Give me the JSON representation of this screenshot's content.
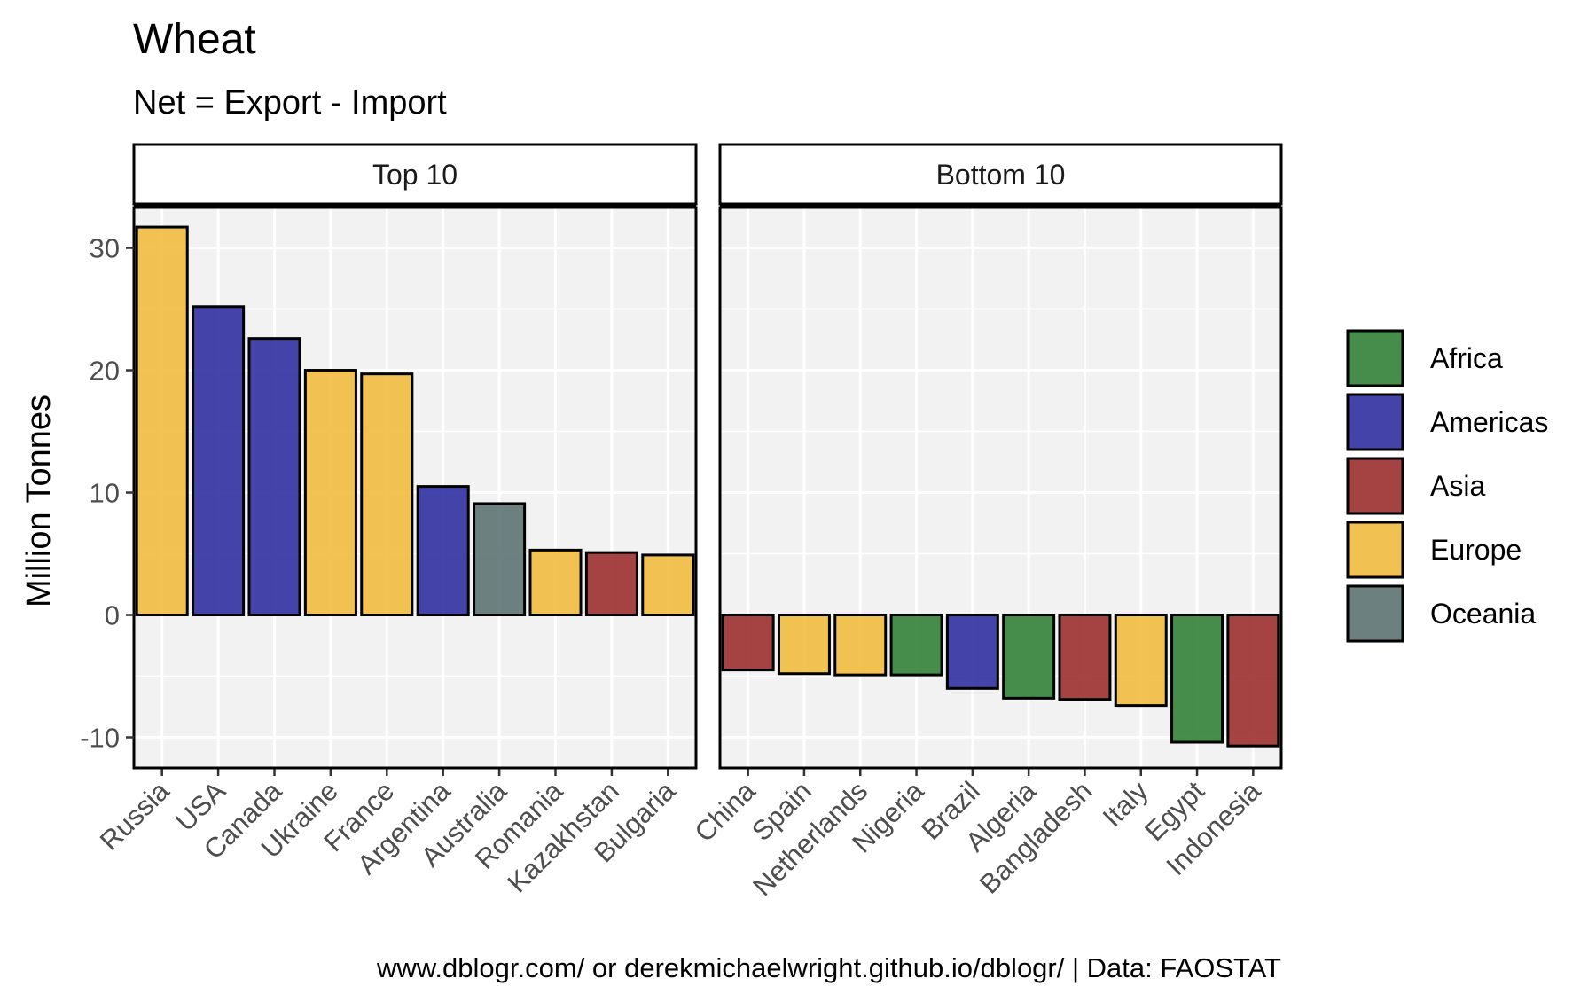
{
  "chart_data": {
    "type": "bar",
    "title": "Wheat",
    "subtitle": "Net = Export - Import",
    "ylabel": "Million Tonnes",
    "xlabel": "",
    "caption": "www.dblogr.com/ or derekmichaelwright.github.io/dblogr/ | Data: FAOSTAT",
    "ylim": [
      -12.5,
      33.3
    ],
    "yticks": [
      -10,
      0,
      10,
      20,
      30
    ],
    "grid": true,
    "legend_position": "right",
    "legend": [
      {
        "label": "Africa",
        "color": "#2e7d32"
      },
      {
        "label": "Americas",
        "color": "#2a2a9e"
      },
      {
        "label": "Asia",
        "color": "#9a2a2a"
      },
      {
        "label": "Europe",
        "color": "#f0b93a"
      },
      {
        "label": "Oceania",
        "color": "#5a6f70"
      }
    ],
    "panels": [
      {
        "strip": "Top 10",
        "bars": [
          {
            "category": "Russia",
            "value": 31.7,
            "region": "Europe"
          },
          {
            "category": "USA",
            "value": 25.2,
            "region": "Americas"
          },
          {
            "category": "Canada",
            "value": 22.6,
            "region": "Americas"
          },
          {
            "category": "Ukraine",
            "value": 20.0,
            "region": "Europe"
          },
          {
            "category": "France",
            "value": 19.7,
            "region": "Europe"
          },
          {
            "category": "Argentina",
            "value": 10.5,
            "region": "Americas"
          },
          {
            "category": "Australia",
            "value": 9.1,
            "region": "Oceania"
          },
          {
            "category": "Romania",
            "value": 5.3,
            "region": "Europe"
          },
          {
            "category": "Kazakhstan",
            "value": 5.1,
            "region": "Asia"
          },
          {
            "category": "Bulgaria",
            "value": 4.9,
            "region": "Europe"
          }
        ]
      },
      {
        "strip": "Bottom 10",
        "bars": [
          {
            "category": "China",
            "value": -4.5,
            "region": "Asia"
          },
          {
            "category": "Spain",
            "value": -4.8,
            "region": "Europe"
          },
          {
            "category": "Netherlands",
            "value": -4.9,
            "region": "Europe"
          },
          {
            "category": "Nigeria",
            "value": -4.9,
            "region": "Africa"
          },
          {
            "category": "Brazil",
            "value": -6.0,
            "region": "Americas"
          },
          {
            "category": "Algeria",
            "value": -6.8,
            "region": "Africa"
          },
          {
            "category": "Bangladesh",
            "value": -6.9,
            "region": "Asia"
          },
          {
            "category": "Italy",
            "value": -7.4,
            "region": "Europe"
          },
          {
            "category": "Egypt",
            "value": -10.4,
            "region": "Africa"
          },
          {
            "category": "Indonesia",
            "value": -10.7,
            "region": "Asia"
          }
        ]
      }
    ]
  }
}
